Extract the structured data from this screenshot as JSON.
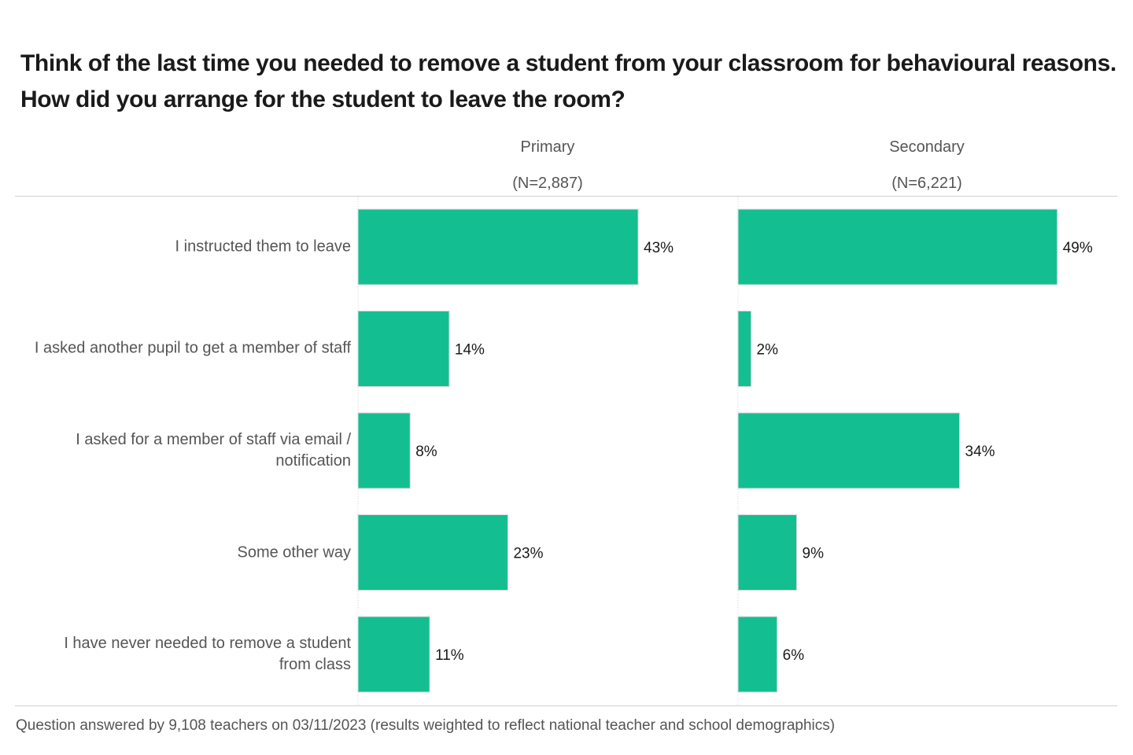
{
  "chart_data": {
    "type": "bar",
    "orientation": "horizontal",
    "title": "Think of the last time you needed to remove a student from your classroom for behavioural reasons. How did you arrange for the student to leave the room?",
    "categories": [
      "I instructed them to leave",
      "I asked another pupil to get a member of staff",
      "I asked for a member of staff via email / notification",
      "Some other way",
      "I have never needed to remove a student from class"
    ],
    "panels": [
      {
        "name": "Primary",
        "n_label": "(N=2,887)",
        "values": [
          43,
          14,
          8,
          23,
          11
        ],
        "value_labels": [
          "43%",
          "14%",
          "8%",
          "23%",
          "11%"
        ]
      },
      {
        "name": "Secondary",
        "n_label": "(N=6,221)",
        "values": [
          49,
          2,
          34,
          9,
          6
        ],
        "value_labels": [
          "49%",
          "2%",
          "34%",
          "9%",
          "6%"
        ]
      }
    ],
    "unit": "%",
    "bar_color": "#13bf90",
    "grid": false,
    "footnote": "Question answered by 9,108 teachers on 03/11/2023 (results weighted to reflect national teacher and school demographics)"
  }
}
